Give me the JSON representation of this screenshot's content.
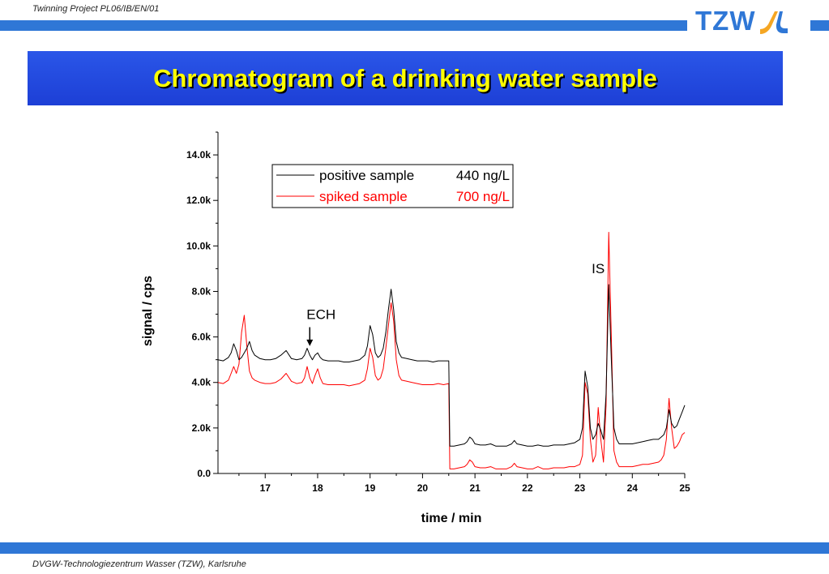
{
  "header": {
    "project": "Twinning Project PL06/IB/EN/01",
    "logo_text": "TZW"
  },
  "title": "Chromatogram of a drinking water sample",
  "footer": "DVGW-Technologiezentrum Wasser (TZW), Karlsruhe",
  "colors": {
    "accent": "#2f77d6",
    "banner": "#1d3fd6",
    "title": "#ffff00",
    "logo_orange": "#f5a623",
    "positive": "#000000",
    "spiked": "#ff0000"
  },
  "chart_data": {
    "type": "line",
    "xlabel": "time / min",
    "ylabel": "signal / cps",
    "xlim": [
      16.1,
      25
    ],
    "ylim": [
      0,
      15000
    ],
    "x_ticks": [
      17,
      18,
      19,
      20,
      21,
      22,
      23,
      24,
      25
    ],
    "x_tick_labels": [
      "17",
      "18",
      "19",
      "20",
      "21",
      "22",
      "23",
      "24",
      "25"
    ],
    "y_ticks": [
      0,
      2000,
      4000,
      6000,
      8000,
      10000,
      12000,
      14000
    ],
    "y_tick_labels": [
      "0.0",
      "2.0k",
      "4.0k",
      "6.0k",
      "8.0k",
      "10.0k",
      "12.0k",
      "14.0k"
    ],
    "grid": false,
    "legend_position": "top-center",
    "series": [
      {
        "name": "positive sample",
        "legend_value": "440 ng/L",
        "color": "#000000",
        "x": [
          16.1,
          16.2,
          16.3,
          16.35,
          16.4,
          16.45,
          16.5,
          16.55,
          16.6,
          16.65,
          16.7,
          16.75,
          16.8,
          16.9,
          17.0,
          17.1,
          17.2,
          17.3,
          17.4,
          17.5,
          17.6,
          17.7,
          17.75,
          17.8,
          17.85,
          17.9,
          17.95,
          18.0,
          18.05,
          18.1,
          18.2,
          18.3,
          18.4,
          18.5,
          18.6,
          18.7,
          18.8,
          18.9,
          18.95,
          19.0,
          19.05,
          19.1,
          19.15,
          19.2,
          19.25,
          19.3,
          19.35,
          19.4,
          19.45,
          19.5,
          19.55,
          19.6,
          19.7,
          19.8,
          19.9,
          20.0,
          20.1,
          20.2,
          20.3,
          20.4,
          20.5,
          20.52,
          20.55,
          20.6,
          20.7,
          20.8,
          20.85,
          20.9,
          20.95,
          21.0,
          21.1,
          21.2,
          21.3,
          21.4,
          21.5,
          21.6,
          21.7,
          21.75,
          21.8,
          21.9,
          22.0,
          22.1,
          22.2,
          22.3,
          22.4,
          22.5,
          22.6,
          22.7,
          22.8,
          22.9,
          23.0,
          23.05,
          23.1,
          23.15,
          23.2,
          23.25,
          23.3,
          23.35,
          23.4,
          23.45,
          23.5,
          23.55,
          23.6,
          23.65,
          23.7,
          23.75,
          23.8,
          23.9,
          24.0,
          24.1,
          24.2,
          24.3,
          24.4,
          24.5,
          24.55,
          24.6,
          24.65,
          24.7,
          24.75,
          24.8,
          24.85,
          24.9,
          24.95,
          25.0
        ],
        "y": [
          5000,
          4950,
          5100,
          5300,
          5700,
          5400,
          5000,
          5100,
          5300,
          5500,
          5800,
          5400,
          5200,
          5050,
          5000,
          5000,
          5050,
          5200,
          5400,
          5050,
          5000,
          5050,
          5200,
          5500,
          5200,
          5000,
          5200,
          5300,
          5100,
          5000,
          4950,
          4950,
          4950,
          4900,
          4900,
          4950,
          5000,
          5200,
          5600,
          6500,
          6100,
          5300,
          5100,
          5200,
          5500,
          6200,
          7200,
          8100,
          7200,
          5800,
          5300,
          5100,
          5050,
          5000,
          4950,
          4950,
          4950,
          4900,
          4950,
          4950,
          4950,
          1200,
          1200,
          1200,
          1250,
          1300,
          1400,
          1600,
          1500,
          1300,
          1250,
          1250,
          1300,
          1200,
          1200,
          1200,
          1300,
          1450,
          1300,
          1250,
          1200,
          1200,
          1250,
          1200,
          1200,
          1250,
          1250,
          1250,
          1300,
          1350,
          1500,
          2000,
          4500,
          3800,
          2000,
          1500,
          1700,
          2200,
          1900,
          1500,
          3500,
          8300,
          5000,
          2000,
          1500,
          1300,
          1300,
          1300,
          1300,
          1350,
          1400,
          1450,
          1500,
          1500,
          1600,
          1700,
          2000,
          2800,
          2200,
          2000,
          2100,
          2400,
          2700,
          3000
        ]
      },
      {
        "name": "spiked sample",
        "legend_value": "700 ng/L",
        "color": "#ff0000",
        "x": [
          16.1,
          16.2,
          16.3,
          16.35,
          16.4,
          16.45,
          16.5,
          16.55,
          16.6,
          16.65,
          16.7,
          16.75,
          16.8,
          16.9,
          17.0,
          17.1,
          17.2,
          17.3,
          17.4,
          17.5,
          17.6,
          17.7,
          17.75,
          17.8,
          17.85,
          17.9,
          17.95,
          18.0,
          18.05,
          18.1,
          18.2,
          18.3,
          18.4,
          18.5,
          18.6,
          18.7,
          18.8,
          18.9,
          18.95,
          19.0,
          19.05,
          19.1,
          19.15,
          19.2,
          19.25,
          19.3,
          19.35,
          19.4,
          19.45,
          19.5,
          19.55,
          19.6,
          19.7,
          19.8,
          19.9,
          20.0,
          20.1,
          20.2,
          20.3,
          20.4,
          20.5,
          20.52,
          20.55,
          20.6,
          20.7,
          20.8,
          20.85,
          20.9,
          20.95,
          21.0,
          21.1,
          21.2,
          21.3,
          21.4,
          21.5,
          21.6,
          21.7,
          21.75,
          21.8,
          21.9,
          22.0,
          22.1,
          22.2,
          22.3,
          22.4,
          22.5,
          22.6,
          22.7,
          22.8,
          22.9,
          23.0,
          23.05,
          23.1,
          23.15,
          23.2,
          23.25,
          23.3,
          23.35,
          23.4,
          23.45,
          23.5,
          23.55,
          23.6,
          23.65,
          23.7,
          23.75,
          23.8,
          23.9,
          24.0,
          24.1,
          24.2,
          24.3,
          24.4,
          24.5,
          24.55,
          24.6,
          24.65,
          24.7,
          24.75,
          24.8,
          24.85,
          24.9,
          24.95,
          25.0
        ],
        "y": [
          4000,
          3950,
          4100,
          4400,
          4700,
          4400,
          4800,
          6200,
          6950,
          5600,
          4500,
          4200,
          4100,
          4000,
          3950,
          3950,
          4000,
          4150,
          4400,
          4050,
          3950,
          4000,
          4200,
          4700,
          4200,
          3950,
          4300,
          4600,
          4200,
          3950,
          3900,
          3900,
          3900,
          3900,
          3850,
          3900,
          3950,
          4100,
          4600,
          5500,
          5100,
          4300,
          4100,
          4200,
          4600,
          5500,
          6500,
          7500,
          6700,
          5000,
          4300,
          4100,
          4050,
          4000,
          3950,
          3900,
          3900,
          3900,
          3950,
          3900,
          3950,
          200,
          200,
          200,
          250,
          300,
          400,
          600,
          500,
          300,
          250,
          250,
          300,
          200,
          200,
          200,
          300,
          450,
          300,
          250,
          200,
          200,
          300,
          200,
          200,
          250,
          250,
          250,
          300,
          300,
          400,
          800,
          4000,
          3500,
          1500,
          500,
          800,
          2900,
          1500,
          500,
          3000,
          10600,
          6000,
          1000,
          500,
          300,
          300,
          300,
          300,
          350,
          400,
          400,
          450,
          500,
          600,
          800,
          1500,
          3300,
          2000,
          1100,
          1200,
          1400,
          1700,
          1800
        ]
      }
    ],
    "annotations": [
      {
        "text": "ECH",
        "x": 17.85,
        "y": 6500,
        "arrow_to_y": 5600
      },
      {
        "text": "IS",
        "x": 23.35,
        "y": 8800
      }
    ]
  }
}
